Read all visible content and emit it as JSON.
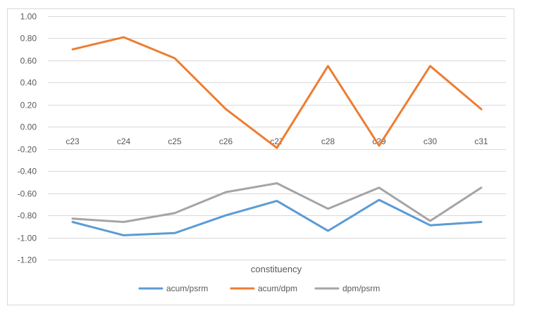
{
  "chart_data": {
    "type": "line",
    "title": "",
    "xlabel": "constituency",
    "ylabel": "",
    "categories": [
      "c23",
      "c24",
      "c25",
      "c26",
      "c27",
      "c28",
      "c29",
      "c30",
      "c31"
    ],
    "ylim": [
      -1.2,
      1.0
    ],
    "ytick_step": 0.2,
    "y_tick_labels": [
      "1.00",
      "0.80",
      "0.60",
      "0.40",
      "0.20",
      "0.00",
      "-0.20",
      "-0.40",
      "-0.60",
      "-0.80",
      "-1.00",
      "-1.20"
    ],
    "grid": true,
    "legend_position": "bottom",
    "series": [
      {
        "name": "acum/psrm",
        "color": "#5B9BD5",
        "values": [
          -0.86,
          -0.98,
          -0.96,
          -0.8,
          -0.67,
          -0.94,
          -0.66,
          -0.89,
          -0.86
        ]
      },
      {
        "name": "acum/dpm",
        "color": "#ED7D31",
        "values": [
          0.7,
          0.81,
          0.62,
          0.16,
          -0.19,
          0.55,
          -0.17,
          0.55,
          0.16
        ]
      },
      {
        "name": "dpm/psrm",
        "color": "#A5A5A5",
        "values": [
          -0.83,
          -0.86,
          -0.78,
          -0.59,
          -0.51,
          -0.74,
          -0.55,
          -0.85,
          -0.55
        ]
      }
    ]
  }
}
